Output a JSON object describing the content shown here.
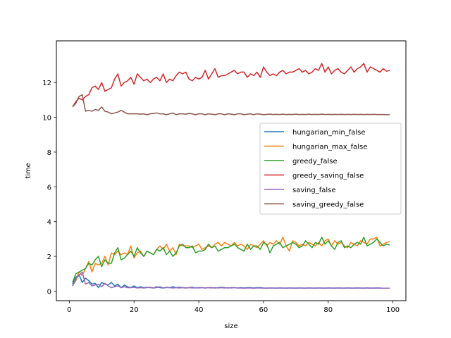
{
  "chart_data": {
    "type": "line",
    "title": "",
    "xlabel": "size",
    "ylabel": "time",
    "xlim": [
      -4,
      104
    ],
    "ylim": [
      -0.55,
      14.4
    ],
    "xticks": [
      0,
      20,
      40,
      60,
      80,
      100
    ],
    "yticks": [
      0,
      2,
      4,
      6,
      8,
      10,
      12
    ],
    "grid": false,
    "legend_position": "center-right",
    "x": [
      1,
      2,
      3,
      4,
      5,
      6,
      7,
      8,
      9,
      10,
      11,
      12,
      13,
      14,
      15,
      16,
      17,
      18,
      19,
      20,
      21,
      22,
      23,
      24,
      25,
      26,
      27,
      28,
      29,
      30,
      31,
      32,
      33,
      34,
      35,
      36,
      37,
      38,
      39,
      40,
      41,
      42,
      43,
      44,
      45,
      46,
      47,
      48,
      49,
      50,
      51,
      52,
      53,
      54,
      55,
      56,
      57,
      58,
      59,
      60,
      61,
      62,
      63,
      64,
      65,
      66,
      67,
      68,
      69,
      70,
      71,
      72,
      73,
      74,
      75,
      76,
      77,
      78,
      79,
      80,
      81,
      82,
      83,
      84,
      85,
      86,
      87,
      88,
      89,
      90,
      91,
      92,
      93,
      94,
      95,
      96,
      97,
      98,
      99
    ],
    "series": [
      {
        "name": "hungarian_min_false",
        "color": "#1f77b4",
        "values": [
          0.4,
          0.8,
          0.95,
          0.5,
          0.75,
          0.6,
          0.4,
          0.45,
          0.2,
          0.5,
          0.4,
          0.35,
          0.5,
          0.3,
          0.4,
          0.2,
          0.35,
          0.25,
          0.2,
          0.3,
          0.2,
          0.25,
          0.2,
          0.22,
          0.2,
          0.18,
          0.25,
          0.2,
          0.18,
          0.22,
          0.2,
          0.25,
          0.2,
          0.22,
          0.2,
          0.18,
          0.2,
          0.22,
          0.18,
          0.2,
          0.2,
          0.18,
          0.2,
          0.2,
          0.18,
          0.2,
          0.22,
          0.2,
          0.18,
          0.2,
          0.2,
          0.18,
          0.2,
          0.18,
          0.2,
          0.2,
          0.18,
          0.2,
          0.2,
          0.18,
          0.17,
          0.18,
          0.18,
          0.17,
          0.18,
          0.18,
          0.17,
          0.18,
          0.18,
          0.17,
          0.18,
          0.18,
          0.17,
          0.18,
          0.18,
          0.17,
          0.18,
          0.18,
          0.17,
          0.18,
          0.18,
          0.17,
          0.18,
          0.18,
          0.17,
          0.18,
          0.18,
          0.17,
          0.18,
          0.18,
          0.17,
          0.18,
          0.18,
          0.17,
          0.18,
          0.18,
          0.17,
          0.17,
          0.17
        ]
      },
      {
        "name": "hungarian_max_false",
        "color": "#ff7f0e",
        "values": [
          0.3,
          0.6,
          1.1,
          0.9,
          1.3,
          1.7,
          1.1,
          1.6,
          1.5,
          1.6,
          2.0,
          1.5,
          2.2,
          2.1,
          2.3,
          2.1,
          2.2,
          2.1,
          2.6,
          1.9,
          2.2,
          2.3,
          2.0,
          2.3,
          2.2,
          2.1,
          2.4,
          2.6,
          2.4,
          2.7,
          2.3,
          2.5,
          2.1,
          2.7,
          2.6,
          2.6,
          2.6,
          2.5,
          2.6,
          2.7,
          2.4,
          2.5,
          2.6,
          2.5,
          2.7,
          2.8,
          2.6,
          2.8,
          2.7,
          2.6,
          2.8,
          2.6,
          2.7,
          2.6,
          2.4,
          2.7,
          2.6,
          2.5,
          2.7,
          2.9,
          2.6,
          2.8,
          2.7,
          2.9,
          2.7,
          3.1,
          2.6,
          2.3,
          2.9,
          2.8,
          2.6,
          2.7,
          2.6,
          2.8,
          2.7,
          2.6,
          2.8,
          2.6,
          2.9,
          3.0,
          2.6,
          2.9,
          2.7,
          2.8,
          2.6,
          2.5,
          2.8,
          2.7,
          2.6,
          2.9,
          2.8,
          2.7,
          3.0,
          3.0,
          3.1,
          2.6,
          2.7,
          2.8,
          2.85
        ]
      },
      {
        "name": "greedy_false",
        "color": "#2ca02c",
        "values": [
          0.5,
          1.0,
          1.1,
          1.2,
          1.3,
          1.6,
          1.5,
          1.8,
          2.0,
          1.4,
          1.8,
          1.6,
          1.6,
          2.2,
          2.5,
          1.8,
          1.9,
          2.1,
          2.3,
          2.0,
          2.5,
          2.2,
          2.0,
          2.3,
          2.2,
          2.1,
          2.4,
          2.3,
          2.5,
          2.1,
          2.3,
          2.0,
          2.2,
          2.6,
          2.7,
          2.5,
          2.5,
          2.6,
          2.2,
          2.3,
          2.3,
          2.4,
          2.7,
          2.5,
          2.6,
          2.3,
          2.4,
          2.5,
          2.5,
          2.6,
          2.7,
          2.5,
          2.4,
          2.3,
          2.7,
          2.4,
          2.6,
          2.6,
          2.4,
          2.8,
          2.7,
          2.2,
          2.6,
          2.7,
          2.8,
          2.5,
          2.6,
          2.7,
          2.8,
          2.7,
          2.5,
          2.6,
          2.9,
          2.7,
          2.5,
          2.8,
          2.7,
          3.1,
          2.7,
          2.9,
          2.6,
          2.4,
          2.8,
          2.9,
          2.5,
          2.6,
          2.5,
          2.7,
          2.8,
          2.7,
          3.1,
          2.6,
          2.7,
          2.8,
          3.0,
          2.8,
          2.6,
          2.7,
          2.65
        ]
      },
      {
        "name": "greedy_saving_false",
        "color": "#d62728",
        "values": [
          10.6,
          10.9,
          11.1,
          11.0,
          11.2,
          11.3,
          11.7,
          11.8,
          11.6,
          12.0,
          11.5,
          11.6,
          11.7,
          12.2,
          12.5,
          11.8,
          12.0,
          12.1,
          12.3,
          11.9,
          12.5,
          12.3,
          12.1,
          12.2,
          12.0,
          12.2,
          12.3,
          12.1,
          12.5,
          12.0,
          12.2,
          12.1,
          12.4,
          12.6,
          12.5,
          12.6,
          12.2,
          12.1,
          12.3,
          12.2,
          12.3,
          12.7,
          12.2,
          12.5,
          12.8,
          12.3,
          12.4,
          12.4,
          12.5,
          12.6,
          12.7,
          12.5,
          12.6,
          12.6,
          12.3,
          12.5,
          12.4,
          12.6,
          12.3,
          12.9,
          12.6,
          12.4,
          12.5,
          12.4,
          12.6,
          12.7,
          12.5,
          12.6,
          12.6,
          12.7,
          12.8,
          12.6,
          12.7,
          12.5,
          12.6,
          12.8,
          12.7,
          13.1,
          12.6,
          12.9,
          12.5,
          12.7,
          12.8,
          12.6,
          12.5,
          12.7,
          12.9,
          12.6,
          12.8,
          12.9,
          13.1,
          12.6,
          12.9,
          12.8,
          12.7,
          12.6,
          12.8,
          12.65,
          12.7
        ]
      },
      {
        "name": "saving_false",
        "color": "#9467bd",
        "values": [
          0.3,
          0.7,
          0.9,
          1.1,
          0.4,
          0.5,
          0.3,
          0.35,
          0.4,
          0.25,
          0.45,
          0.3,
          0.2,
          0.25,
          0.3,
          0.2,
          0.25,
          0.2,
          0.2,
          0.22,
          0.18,
          0.2,
          0.18,
          0.2,
          0.22,
          0.18,
          0.2,
          0.25,
          0.18,
          0.2,
          0.2,
          0.18,
          0.2,
          0.18,
          0.2,
          0.18,
          0.2,
          0.18,
          0.2,
          0.18,
          0.2,
          0.18,
          0.2,
          0.18,
          0.2,
          0.18,
          0.2,
          0.18,
          0.2,
          0.18,
          0.2,
          0.18,
          0.18,
          0.17,
          0.18,
          0.18,
          0.17,
          0.18,
          0.18,
          0.17,
          0.18,
          0.18,
          0.17,
          0.18,
          0.18,
          0.17,
          0.18,
          0.18,
          0.17,
          0.18,
          0.18,
          0.17,
          0.18,
          0.18,
          0.17,
          0.18,
          0.18,
          0.17,
          0.18,
          0.18,
          0.17,
          0.18,
          0.18,
          0.17,
          0.18,
          0.18,
          0.17,
          0.18,
          0.18,
          0.17,
          0.18,
          0.18,
          0.17,
          0.18,
          0.18,
          0.17,
          0.17,
          0.17,
          0.17
        ]
      },
      {
        "name": "saving_greedy_false",
        "color": "#8c564b",
        "values": [
          10.6,
          10.8,
          11.2,
          11.3,
          10.35,
          10.4,
          10.35,
          10.45,
          10.4,
          10.6,
          10.35,
          10.3,
          10.2,
          10.25,
          10.3,
          10.4,
          10.3,
          10.2,
          10.2,
          10.2,
          10.2,
          10.18,
          10.2,
          10.15,
          10.2,
          10.22,
          10.25,
          10.2,
          10.2,
          10.15,
          10.2,
          10.25,
          10.15,
          10.2,
          10.2,
          10.18,
          10.22,
          10.2,
          10.15,
          10.2,
          10.2,
          10.15,
          10.2,
          10.18,
          10.15,
          10.2,
          10.2,
          10.15,
          10.2,
          10.18,
          10.15,
          10.2,
          10.2,
          10.15,
          10.18,
          10.2,
          10.15,
          10.2,
          10.18,
          10.15,
          10.17,
          10.18,
          10.16,
          10.17,
          10.16,
          10.18,
          10.16,
          10.17,
          10.16,
          10.18,
          10.16,
          10.17,
          10.16,
          10.18,
          10.16,
          10.17,
          10.16,
          10.18,
          10.16,
          10.17,
          10.16,
          10.17,
          10.16,
          10.17,
          10.16,
          10.17,
          10.16,
          10.17,
          10.16,
          10.17,
          10.16,
          10.17,
          10.16,
          10.17,
          10.16,
          10.16,
          10.16,
          10.15,
          10.15
        ]
      }
    ]
  }
}
